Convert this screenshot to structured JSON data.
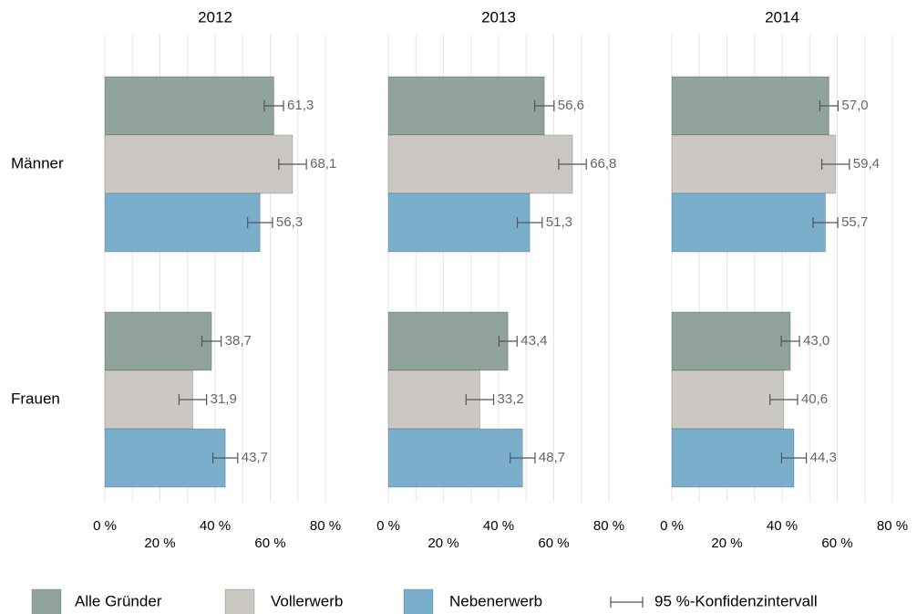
{
  "chart_data": [
    {
      "type": "bar",
      "orientation": "horizontal",
      "title": "2012",
      "categories": [
        "Männer",
        "Frauen"
      ],
      "series": [
        {
          "name": "Alle Gründer",
          "color": "#8fa39a",
          "values": [
            61.3,
            38.7
          ],
          "value_labels": [
            "61,3",
            "38,7"
          ],
          "errors": [
            3.5,
            3.5
          ]
        },
        {
          "name": "Vollerwerb",
          "color": "#cbc8c3",
          "values": [
            68.1,
            31.9
          ],
          "value_labels": [
            "68,1",
            "31,9"
          ],
          "errors": [
            5,
            5
          ]
        },
        {
          "name": "Nebenerwerb",
          "color": "#7aafcc",
          "values": [
            56.3,
            43.7
          ],
          "value_labels": [
            "56,3",
            "43,7"
          ],
          "errors": [
            4.5,
            4.5
          ]
        }
      ],
      "error_bar_label": "95 %-Konfidenzintervall",
      "xlim": [
        0,
        80
      ],
      "xticks": [
        {
          "value": 0,
          "label": "0 %"
        },
        {
          "value": 20,
          "label": "20 %"
        },
        {
          "value": 40,
          "label": "40 %"
        },
        {
          "value": 60,
          "label": "60 %"
        },
        {
          "value": 80,
          "label": "80 %"
        }
      ],
      "grid_xticks": [
        0,
        10,
        20,
        30,
        40,
        50,
        60,
        70,
        80
      ],
      "grid": true
    },
    {
      "type": "bar",
      "orientation": "horizontal",
      "title": "2013",
      "categories": [
        null,
        null
      ],
      "series": [
        {
          "name": "Alle Gründer",
          "color": "#8fa39a",
          "values": [
            56.6,
            43.4
          ],
          "value_labels": [
            "56,6",
            "43,4"
          ],
          "errors": [
            3.5,
            3.3
          ]
        },
        {
          "name": "Vollerwerb",
          "color": "#cbc8c3",
          "values": [
            66.8,
            33.2
          ],
          "value_labels": [
            "66,8",
            "33,2"
          ],
          "errors": [
            5,
            5
          ]
        },
        {
          "name": "Nebenerwerb",
          "color": "#7aafcc",
          "values": [
            51.3,
            48.7
          ],
          "value_labels": [
            "51,3",
            "48,7"
          ],
          "errors": [
            4.5,
            4.5
          ]
        }
      ],
      "xlim": [
        0,
        80
      ],
      "xticks": [
        {
          "value": 0,
          "label": "0 %"
        },
        {
          "value": 20,
          "label": "20 %"
        },
        {
          "value": 40,
          "label": "40 %"
        },
        {
          "value": 60,
          "label": "60 %"
        },
        {
          "value": 80,
          "label": "80 %"
        }
      ],
      "grid_xticks": [
        0,
        10,
        20,
        30,
        40,
        50,
        60,
        70,
        80
      ],
      "grid": true
    },
    {
      "type": "bar",
      "orientation": "horizontal",
      "title": "2014",
      "categories": [
        null,
        null
      ],
      "series": [
        {
          "name": "Alle Gründer",
          "color": "#8fa39a",
          "values": [
            57.0,
            43.0
          ],
          "value_labels": [
            "57,0",
            "43,0"
          ],
          "errors": [
            3.3,
            3.3
          ]
        },
        {
          "name": "Vollerwerb",
          "color": "#cbc8c3",
          "values": [
            59.4,
            40.6
          ],
          "value_labels": [
            "59,4",
            "40,6"
          ],
          "errors": [
            5,
            5
          ]
        },
        {
          "name": "Nebenerwerb",
          "color": "#7aafcc",
          "values": [
            55.7,
            44.3
          ],
          "value_labels": [
            "55,7",
            "44,3"
          ],
          "errors": [
            4.5,
            4.5
          ]
        }
      ],
      "xlim": [
        0,
        80
      ],
      "xticks": [
        {
          "value": 0,
          "label": "0 %"
        },
        {
          "value": 20,
          "label": "20 %"
        },
        {
          "value": 40,
          "label": "40 %"
        },
        {
          "value": 60,
          "label": "60 %"
        },
        {
          "value": 80,
          "label": "80 %"
        }
      ],
      "grid_xticks": [
        0,
        10,
        20,
        30,
        40,
        50,
        60,
        70,
        80
      ],
      "grid": true
    }
  ]
}
